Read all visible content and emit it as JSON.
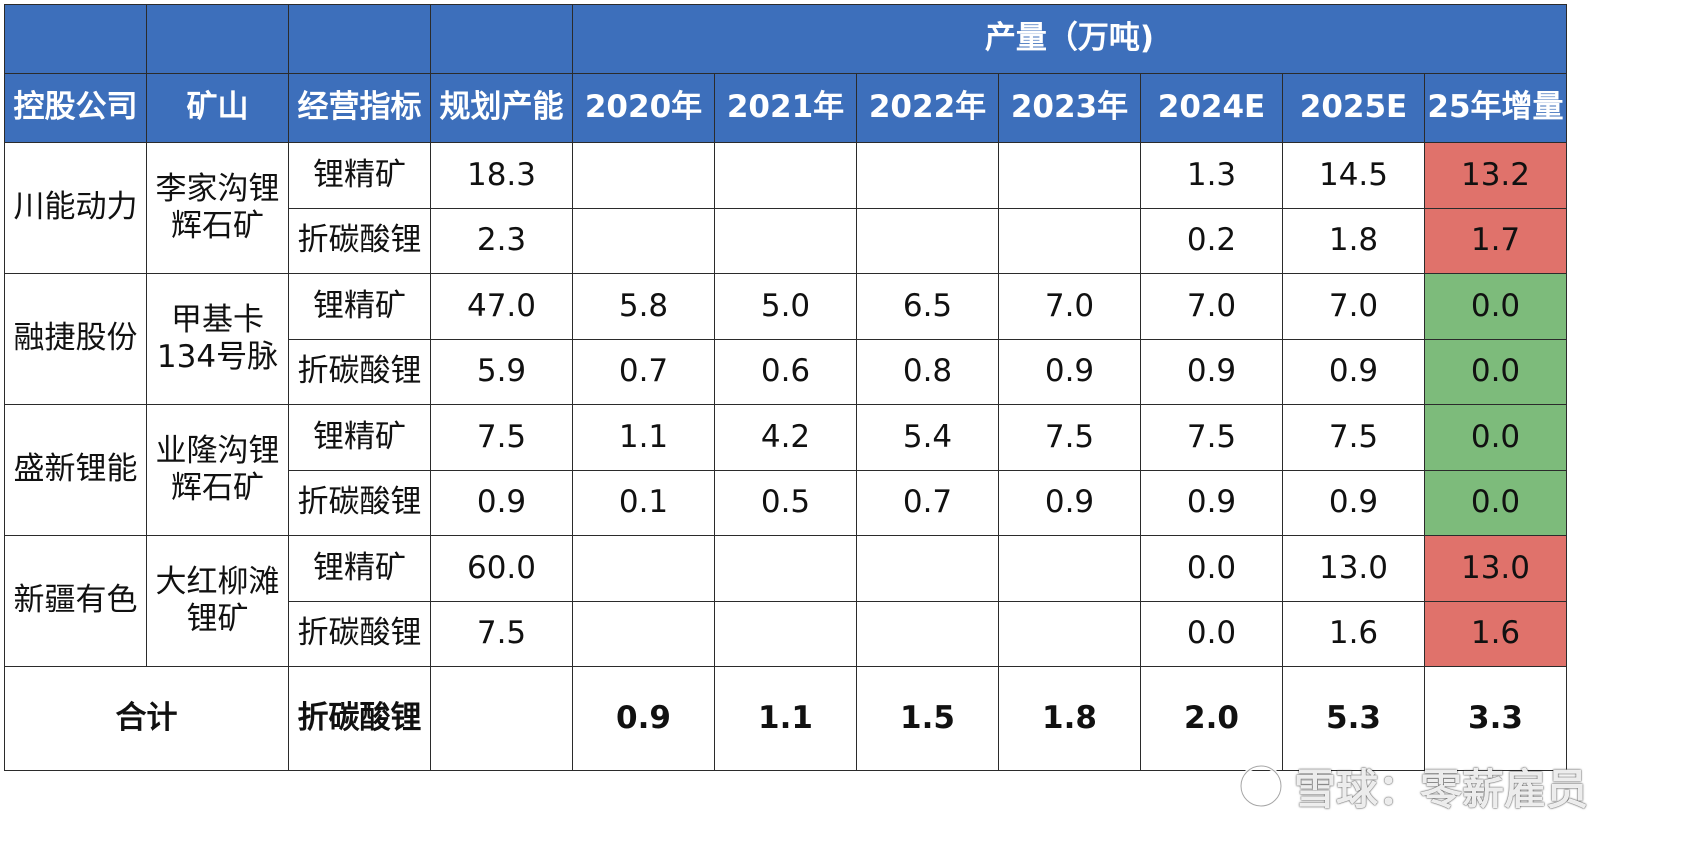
{
  "header": {
    "group_label": "产量（万吨)",
    "columns": [
      "控股公司",
      "矿山",
      "经营指标",
      "规划产能",
      "2020年",
      "2021年",
      "2022年",
      "2023年",
      "2024E",
      "2025E",
      "25年增量"
    ]
  },
  "groups": [
    {
      "company": "川能动力",
      "mine": "李家沟锂辉石矿",
      "rows": [
        {
          "metric": "锂精矿",
          "capacity": "18.3",
          "values": [
            "",
            "",
            "",
            "",
            "1.3",
            "14.5"
          ],
          "increment": "13.2",
          "increment_status": "red"
        },
        {
          "metric": "折碳酸锂",
          "capacity": "2.3",
          "values": [
            "",
            "",
            "",
            "",
            "0.2",
            "1.8"
          ],
          "increment": "1.7",
          "increment_status": "red"
        }
      ]
    },
    {
      "company": "融捷股份",
      "mine": "甲基卡134号脉",
      "rows": [
        {
          "metric": "锂精矿",
          "capacity": "47.0",
          "values": [
            "5.8",
            "5.0",
            "6.5",
            "7.0",
            "7.0",
            "7.0"
          ],
          "increment": "0.0",
          "increment_status": "green"
        },
        {
          "metric": "折碳酸锂",
          "capacity": "5.9",
          "values": [
            "0.7",
            "0.6",
            "0.8",
            "0.9",
            "0.9",
            "0.9"
          ],
          "increment": "0.0",
          "increment_status": "green"
        }
      ]
    },
    {
      "company": "盛新锂能",
      "mine": "业隆沟锂辉石矿",
      "rows": [
        {
          "metric": "锂精矿",
          "capacity": "7.5",
          "values": [
            "1.1",
            "4.2",
            "5.4",
            "7.5",
            "7.5",
            "7.5"
          ],
          "increment": "0.0",
          "increment_status": "green"
        },
        {
          "metric": "折碳酸锂",
          "capacity": "0.9",
          "values": [
            "0.1",
            "0.5",
            "0.7",
            "0.9",
            "0.9",
            "0.9"
          ],
          "increment": "0.0",
          "increment_status": "green"
        }
      ]
    },
    {
      "company": "新疆有色",
      "mine": "大红柳滩锂矿",
      "rows": [
        {
          "metric": "锂精矿",
          "capacity": "60.0",
          "values": [
            "",
            "",
            "",
            "",
            "0.0",
            "13.0"
          ],
          "increment": "13.0",
          "increment_status": "red"
        },
        {
          "metric": "折碳酸锂",
          "capacity": "7.5",
          "values": [
            "",
            "",
            "",
            "",
            "0.0",
            "1.6"
          ],
          "increment": "1.6",
          "increment_status": "red"
        }
      ]
    }
  ],
  "total": {
    "label": "合计",
    "metric": "折碳酸锂",
    "capacity": "",
    "values": [
      "0.9",
      "1.1",
      "1.5",
      "1.8",
      "2.0",
      "5.3"
    ],
    "increment": "3.3"
  },
  "watermark": {
    "text": "雪球：零薪雇员",
    "icon": "snowball-logo-icon"
  },
  "colors": {
    "header_bg": "#3d6fbb",
    "increase": "#e0726b",
    "no_change": "#7dbb7b"
  }
}
